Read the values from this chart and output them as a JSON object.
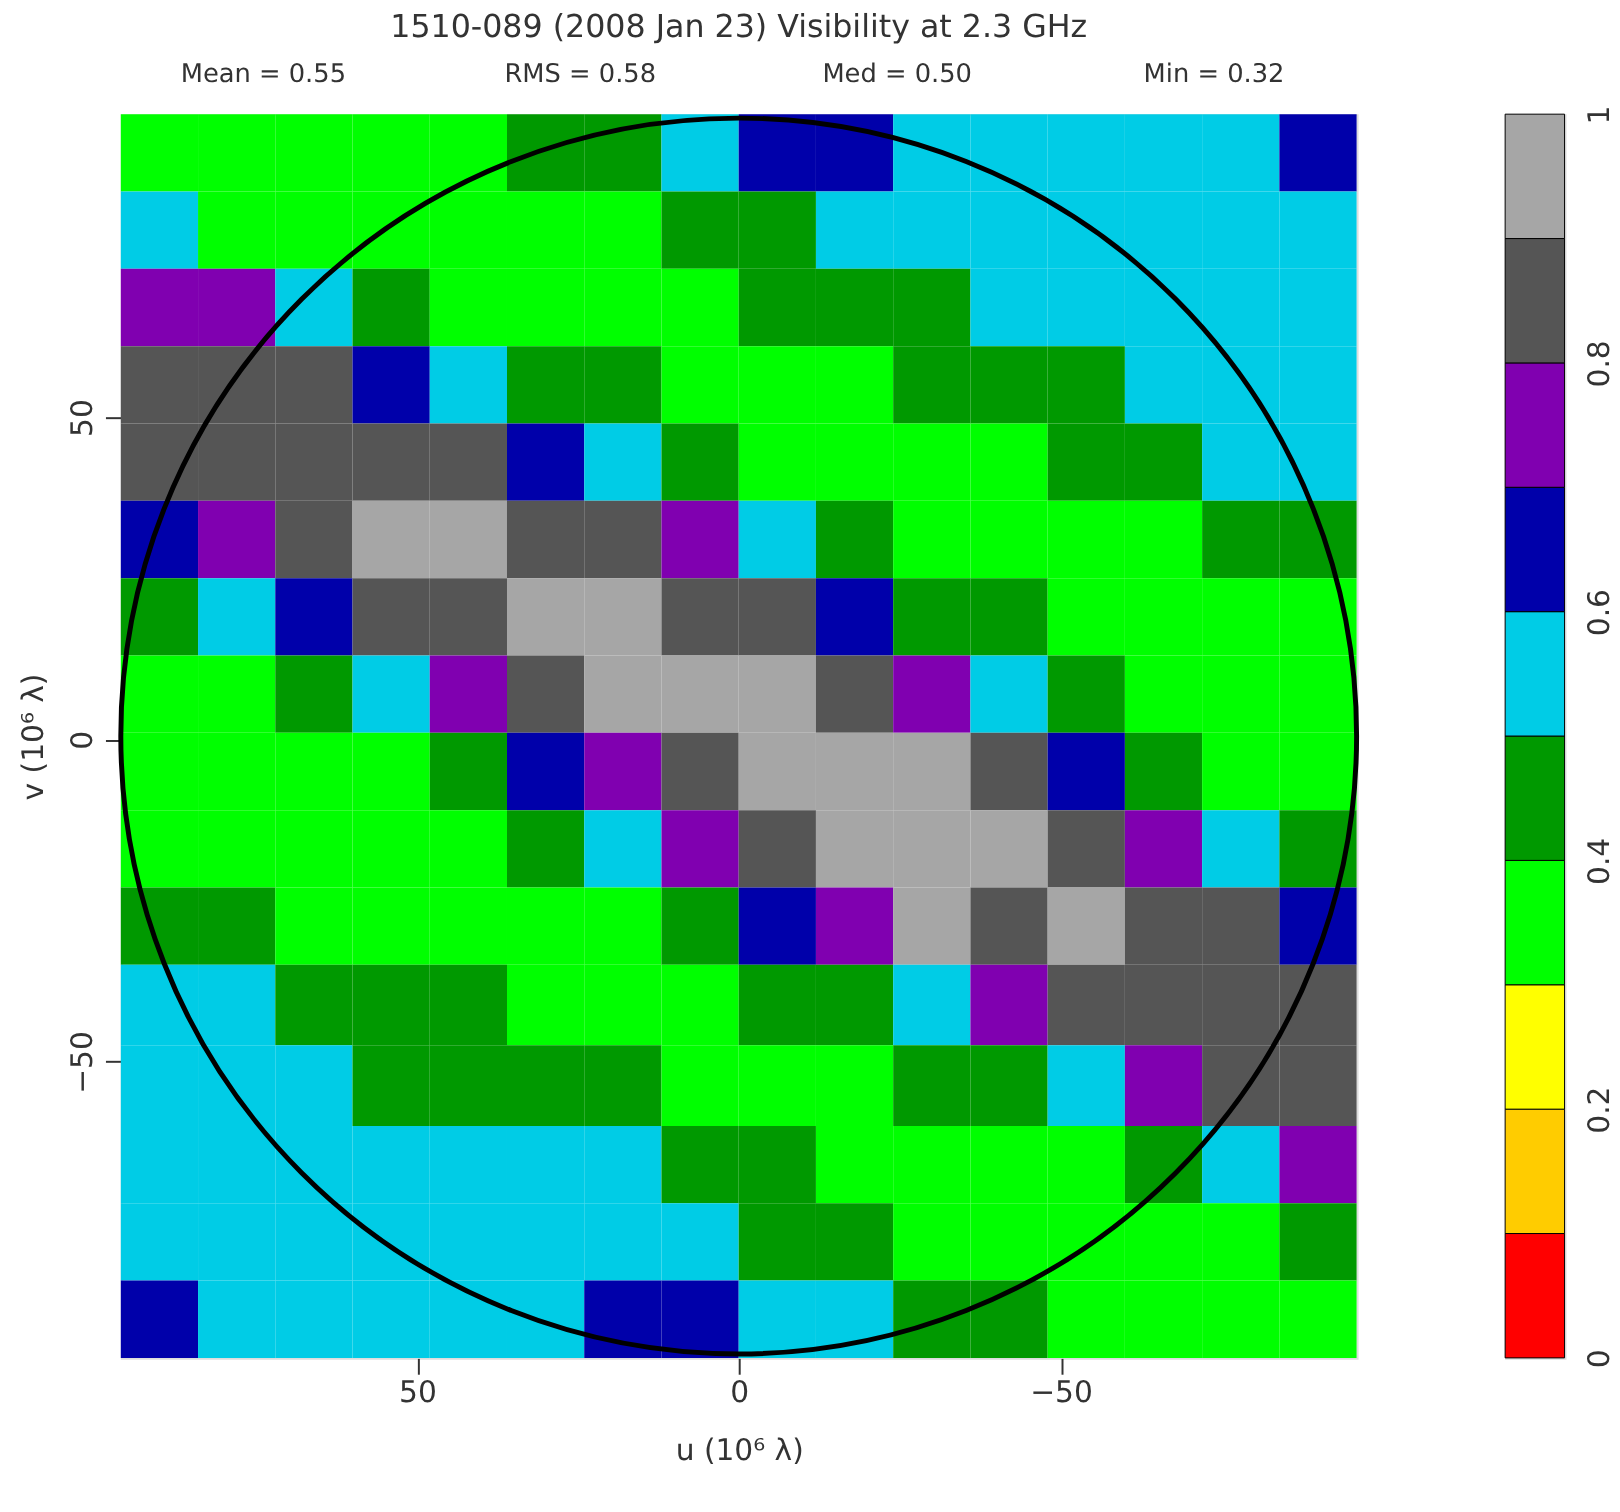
{
  "chart_data": {
    "type": "heatmap",
    "title": "1510-089  (2008 Jan 23)   Visibility at  2.3 GHz",
    "annotations": [
      "Mean =  0.55",
      "RMS =  0.58",
      "Med =  0.50",
      "Min =  0.32"
    ],
    "xlabel": "u  (10⁶ λ)",
    "ylabel": "v  (10⁶ λ)",
    "x": [
      90,
      78,
      66,
      54,
      42,
      30,
      18,
      6,
      -6,
      -18,
      -30,
      -42,
      -54,
      -66,
      -78,
      -90
    ],
    "y": [
      91,
      79,
      67,
      55,
      43,
      31,
      19,
      7,
      -5,
      -17,
      -29,
      -41,
      -54,
      -66,
      -78,
      -90
    ],
    "xlim": [
      96,
      -96
    ],
    "ylim": [
      -96,
      97
    ],
    "xticks": [
      50,
      0,
      -50
    ],
    "yticks": [
      -50,
      0,
      50
    ],
    "cells": [
      [
        0.35,
        0.35,
        0.35,
        0.35,
        0.35,
        0.45,
        0.45,
        0.55,
        0.65,
        0.65,
        0.55,
        0.55,
        0.55,
        0.55,
        0.55,
        0.65
      ],
      [
        0.55,
        0.35,
        0.35,
        0.35,
        0.35,
        0.35,
        0.35,
        0.45,
        0.45,
        0.55,
        0.55,
        0.55,
        0.55,
        0.55,
        0.55,
        0.55
      ],
      [
        0.75,
        0.75,
        0.55,
        0.45,
        0.35,
        0.35,
        0.35,
        0.35,
        0.45,
        0.45,
        0.45,
        0.55,
        0.55,
        0.55,
        0.55,
        0.55
      ],
      [
        0.85,
        0.85,
        0.85,
        0.65,
        0.55,
        0.45,
        0.45,
        0.35,
        0.35,
        0.35,
        0.45,
        0.45,
        0.45,
        0.55,
        0.55,
        0.55
      ],
      [
        0.85,
        0.85,
        0.85,
        0.85,
        0.85,
        0.65,
        0.55,
        0.45,
        0.35,
        0.35,
        0.35,
        0.35,
        0.45,
        0.45,
        0.55,
        0.55
      ],
      [
        0.65,
        0.75,
        0.85,
        0.95,
        0.95,
        0.85,
        0.85,
        0.75,
        0.55,
        0.45,
        0.35,
        0.35,
        0.35,
        0.35,
        0.45,
        0.45
      ],
      [
        0.45,
        0.55,
        0.65,
        0.85,
        0.85,
        0.95,
        0.95,
        0.85,
        0.85,
        0.65,
        0.45,
        0.45,
        0.35,
        0.35,
        0.35,
        0.35
      ],
      [
        0.35,
        0.35,
        0.45,
        0.55,
        0.75,
        0.85,
        0.95,
        0.95,
        0.95,
        0.85,
        0.75,
        0.55,
        0.45,
        0.35,
        0.35,
        0.35
      ],
      [
        0.35,
        0.35,
        0.35,
        0.35,
        0.45,
        0.65,
        0.75,
        0.85,
        0.95,
        0.95,
        0.95,
        0.85,
        0.65,
        0.45,
        0.35,
        0.35
      ],
      [
        0.35,
        0.35,
        0.35,
        0.35,
        0.35,
        0.45,
        0.55,
        0.75,
        0.85,
        0.95,
        0.95,
        0.95,
        0.85,
        0.75,
        0.55,
        0.45
      ],
      [
        0.45,
        0.45,
        0.35,
        0.35,
        0.35,
        0.35,
        0.35,
        0.45,
        0.65,
        0.75,
        0.95,
        0.85,
        0.95,
        0.85,
        0.85,
        0.65
      ],
      [
        0.55,
        0.55,
        0.45,
        0.45,
        0.45,
        0.35,
        0.35,
        0.35,
        0.45,
        0.45,
        0.55,
        0.75,
        0.85,
        0.85,
        0.85,
        0.85
      ],
      [
        0.55,
        0.55,
        0.55,
        0.45,
        0.45,
        0.45,
        0.45,
        0.35,
        0.35,
        0.35,
        0.45,
        0.45,
        0.55,
        0.75,
        0.85,
        0.85
      ],
      [
        0.55,
        0.55,
        0.55,
        0.55,
        0.55,
        0.55,
        0.55,
        0.45,
        0.45,
        0.35,
        0.35,
        0.35,
        0.35,
        0.45,
        0.55,
        0.75
      ],
      [
        0.55,
        0.55,
        0.55,
        0.55,
        0.55,
        0.55,
        0.55,
        0.55,
        0.45,
        0.45,
        0.35,
        0.35,
        0.35,
        0.35,
        0.35,
        0.45
      ],
      [
        0.65,
        0.55,
        0.55,
        0.55,
        0.55,
        0.55,
        0.65,
        0.65,
        0.55,
        0.55,
        0.45,
        0.45,
        0.35,
        0.35,
        0.35,
        0.35
      ]
    ],
    "colors": [
      "#ff0000",
      "#ffcc00",
      "#ffff00",
      "#00ff00",
      "#009900",
      "#00cce6",
      "#0000aa",
      "#8000b0",
      "#555555",
      "#a6a6a6"
    ],
    "clim": [
      0,
      1
    ],
    "cticks": [
      0,
      0.2,
      0.4,
      0.6,
      0.8,
      1
    ],
    "grid": false
  }
}
